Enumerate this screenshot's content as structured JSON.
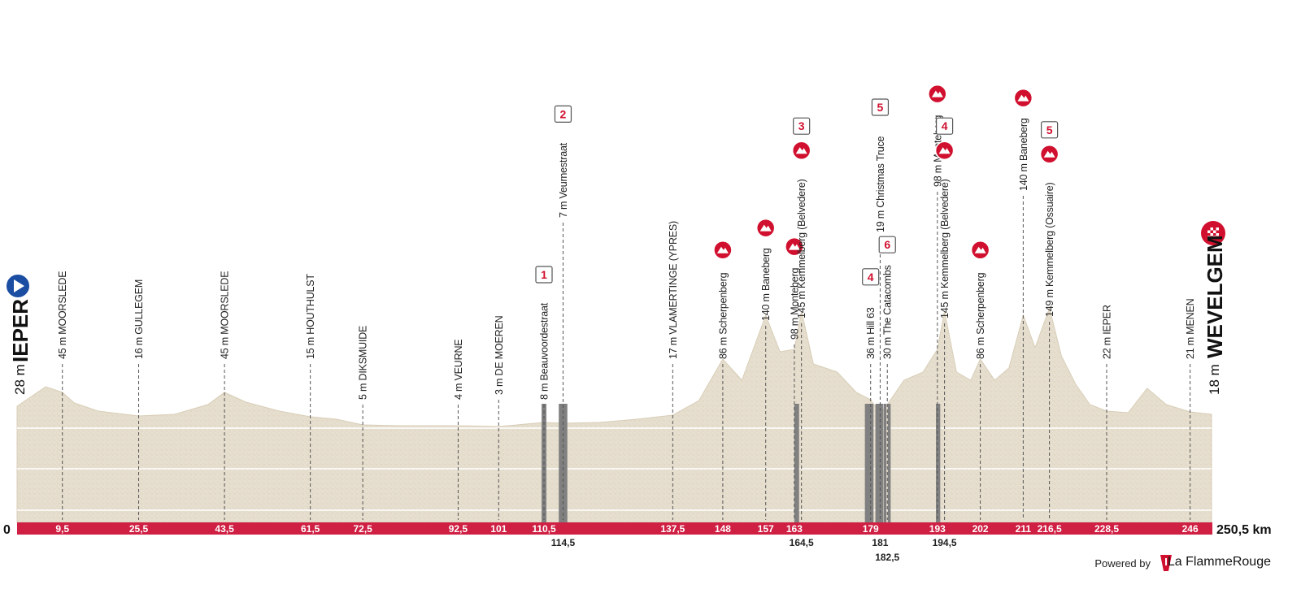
{
  "chart_data": {
    "type": "area",
    "title": "",
    "start": {
      "name": "IEPER",
      "altitude": "28 m"
    },
    "finish": {
      "name": "WEVELGEM",
      "altitude": "18 m"
    },
    "distance_total": 250.5,
    "distance_total_label": "250,5 km",
    "start_km_label": "0",
    "profile": [
      [
        0,
        28
      ],
      [
        3,
        40
      ],
      [
        6,
        52
      ],
      [
        9.5,
        45
      ],
      [
        12,
        32
      ],
      [
        17,
        22
      ],
      [
        25.5,
        16
      ],
      [
        33,
        18
      ],
      [
        40,
        30
      ],
      [
        43.5,
        45
      ],
      [
        48,
        33
      ],
      [
        55,
        22
      ],
      [
        61.5,
        15
      ],
      [
        67,
        12
      ],
      [
        72.5,
        5
      ],
      [
        80,
        4
      ],
      [
        92.5,
        4
      ],
      [
        101,
        3
      ],
      [
        110.5,
        8
      ],
      [
        114.5,
        7
      ],
      [
        122,
        8
      ],
      [
        130,
        12
      ],
      [
        137.5,
        17
      ],
      [
        143,
        35
      ],
      [
        148,
        86
      ],
      [
        152,
        60
      ],
      [
        157,
        140
      ],
      [
        160,
        95
      ],
      [
        163,
        98
      ],
      [
        164.5,
        145
      ],
      [
        167,
        80
      ],
      [
        172,
        70
      ],
      [
        176,
        45
      ],
      [
        179,
        36
      ],
      [
        181,
        19
      ],
      [
        182.5,
        30
      ],
      [
        186,
        60
      ],
      [
        190,
        70
      ],
      [
        193,
        98
      ],
      [
        194.5,
        145
      ],
      [
        197,
        70
      ],
      [
        200,
        60
      ],
      [
        202,
        86
      ],
      [
        205,
        60
      ],
      [
        208,
        75
      ],
      [
        211,
        140
      ],
      [
        213.5,
        100
      ],
      [
        216.5,
        149
      ],
      [
        219,
        90
      ],
      [
        222,
        55
      ],
      [
        225,
        30
      ],
      [
        228.5,
        22
      ],
      [
        233,
        20
      ],
      [
        237,
        50
      ],
      [
        241,
        30
      ],
      [
        246,
        21
      ],
      [
        250.5,
        18
      ]
    ],
    "ylim": [
      0,
      360
    ],
    "waypoints": [
      {
        "km": 9.5,
        "km_label": "9,5",
        "text": "45 m MOORSLEDE"
      },
      {
        "km": 25.5,
        "km_label": "25,5",
        "text": "16 m GULLEGEM"
      },
      {
        "km": 43.5,
        "km_label": "43,5",
        "text": "45 m MOORSLEDE"
      },
      {
        "km": 61.5,
        "km_label": "61,5",
        "text": "15 m HOUTHULST"
      },
      {
        "km": 72.5,
        "km_label": "72,5",
        "text": "5 m DIKSMUIDE"
      },
      {
        "km": 92.5,
        "km_label": "92,5",
        "text": "4 m VEURNE"
      },
      {
        "km": 101,
        "km_label": "101",
        "text": "3 m DE MOEREN"
      },
      {
        "km": 110.5,
        "km_label": "110,5",
        "text": "8 m Beauvoordestraat",
        "badge": "1"
      },
      {
        "km": 114.5,
        "km_label": "114,5",
        "text": "7 m Veurnestraat",
        "badge": "2",
        "below": true
      },
      {
        "km": 137.5,
        "km_label": "137,5",
        "text": "17 m VLAMERTINGE (YPRES)"
      },
      {
        "km": 148,
        "km_label": "148",
        "text": "86 m Scherpenberg",
        "climb": true
      },
      {
        "km": 157,
        "km_label": "157",
        "text": "140 m Baneberg",
        "climb": true
      },
      {
        "km": 163,
        "km_label": "163",
        "text": "98 m Monteberg",
        "climb": true
      },
      {
        "km": 164.5,
        "km_label": "164,5",
        "text": "145 m Kemmelberg (Belvedere)",
        "badge": "3",
        "climb": true,
        "below": true
      },
      {
        "km": 179,
        "km_label": "179",
        "text": "36 m Hill 63",
        "badge": "4"
      },
      {
        "km": 181,
        "km_label": "181",
        "text": "19 m Christmas Truce",
        "badge": "5",
        "below": true
      },
      {
        "km": 182.5,
        "km_label": "182,5",
        "text": "30 m The Catacombs",
        "badge": "6",
        "below2": true
      },
      {
        "km": 193,
        "km_label": "193",
        "text": "98 m Monteberg",
        "climb": true
      },
      {
        "km": 194.5,
        "km_label": "194,5",
        "text": "145 m Kemmelberg (Belvedere)",
        "badge": "4",
        "climb": true,
        "below": true
      },
      {
        "km": 202,
        "km_label": "202",
        "text": "86 m Scherpenberg",
        "climb": true
      },
      {
        "km": 211,
        "km_label": "211",
        "text": "140 m Baneberg",
        "climb": true
      },
      {
        "km": 216.5,
        "km_label": "216,5",
        "text": "149 m Kemmelberg (Ossuaire)",
        "badge": "5",
        "climb": true
      },
      {
        "km": 228.5,
        "km_label": "228,5",
        "text": "22 m IEPER"
      },
      {
        "km": 246,
        "km_label": "246",
        "text": "21 m MENEN"
      }
    ],
    "gravel_sectors": [
      {
        "from": 110.0,
        "to": 111.0
      },
      {
        "from": 113.6,
        "to": 115.4
      },
      {
        "from": 163.0,
        "to": 164.0
      },
      {
        "from": 177.8,
        "to": 179.6
      },
      {
        "from": 180.0,
        "to": 181.6
      },
      {
        "from": 181.7,
        "to": 182.3
      },
      {
        "from": 182.6,
        "to": 183.2
      },
      {
        "from": 192.7,
        "to": 193.6
      }
    ]
  },
  "footer": {
    "powered_by": "Powered by",
    "brand": "La FlammeRouge"
  },
  "colors": {
    "terrain": "#e8e0cf",
    "terrain_dark": "#d9cfb9",
    "bar": "#cf1f43",
    "gravel": "#808080",
    "badge": "#d0102e"
  }
}
